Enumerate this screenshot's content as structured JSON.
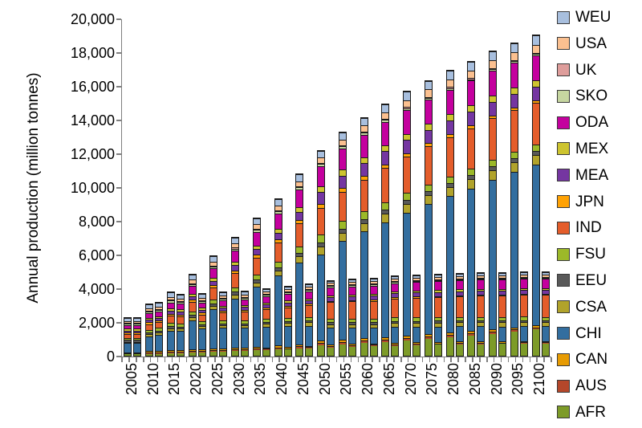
{
  "chart_data": {
    "type": "bar",
    "variant": "grouped-stacked-columns",
    "title": "",
    "xlabel": "",
    "ylabel": "Annual production (million tonnes)",
    "ylim": [
      0,
      20000
    ],
    "ytick_step": 2000,
    "ytick_labels": [
      "0",
      "2,000",
      "4,000",
      "6,000",
      "8,000",
      "10,000",
      "12,000",
      "14,000",
      "16,000",
      "18,000",
      "20,000"
    ],
    "grid": false,
    "legend_position": "right",
    "axis_color": "#7f7f7f",
    "bar_outline_color": "#1b1b1b",
    "years": [
      "2005",
      "2010",
      "2015",
      "2020",
      "2025",
      "2030",
      "2035",
      "2040",
      "2045",
      "2050",
      "2055",
      "2060",
      "2065",
      "2070",
      "2075",
      "2080",
      "2085",
      "2090",
      "2095",
      "2100"
    ],
    "bars_per_group": 2,
    "bar_keys": [
      "left_bar",
      "right_bar"
    ],
    "legend": [
      {
        "label": "WEU",
        "color": "#A8BFDE"
      },
      {
        "label": "USA",
        "color": "#FBC090"
      },
      {
        "label": "UK",
        "color": "#DE9D9B"
      },
      {
        "label": "SKO",
        "color": "#C6D6A0"
      },
      {
        "label": "ODA",
        "color": "#C4009E"
      },
      {
        "label": "MEX",
        "color": "#CDC42F"
      },
      {
        "label": "MEA",
        "color": "#7536A1"
      },
      {
        "label": "JPN",
        "color": "#FFA204"
      },
      {
        "label": "IND",
        "color": "#E45D2B"
      },
      {
        "label": "FSU",
        "color": "#9CB929"
      },
      {
        "label": "EEU",
        "color": "#595959"
      },
      {
        "label": "CSA",
        "color": "#B1A32B"
      },
      {
        "label": "CHI",
        "color": "#336E9F"
      },
      {
        "label": "CAN",
        "color": "#E79B02"
      },
      {
        "label": "AUS",
        "color": "#B5472A"
      },
      {
        "label": "AFR",
        "color": "#7D9B28"
      }
    ],
    "stack_order_bottom_to_top": [
      "AFR",
      "AUS",
      "CAN",
      "CHI",
      "CSA",
      "EEU",
      "FSU",
      "IND",
      "JPN",
      "MEA",
      "MEX",
      "ODA",
      "SKO",
      "UK",
      "USA",
      "WEU"
    ],
    "series": {
      "left_bar": {
        "AFR": [
          80,
          110,
          150,
          200,
          240,
          280,
          320,
          370,
          430,
          620,
          690,
          760,
          830,
          910,
          990,
          1080,
          1180,
          1290,
          1410,
          1550
        ],
        "AUS": [
          65,
          80,
          90,
          100,
          110,
          115,
          120,
          125,
          130,
          140,
          140,
          140,
          140,
          140,
          140,
          140,
          140,
          140,
          140,
          140
        ],
        "CAN": [
          65,
          75,
          85,
          90,
          95,
          100,
          105,
          110,
          120,
          140,
          140,
          140,
          140,
          140,
          140,
          140,
          140,
          140,
          140,
          140
        ],
        "CHI": [
          530,
          895,
          1160,
          1710,
          2315,
          2905,
          3535,
          4145,
          4860,
          5100,
          5820,
          6330,
          6805,
          7300,
          7710,
          8100,
          8450,
          8865,
          9205,
          9490
        ],
        "CSA": [
          95,
          120,
          150,
          180,
          210,
          240,
          270,
          310,
          350,
          480,
          490,
          500,
          510,
          520,
          530,
          540,
          550,
          560,
          565,
          570
        ],
        "EEU": [
          110,
          120,
          130,
          140,
          150,
          160,
          170,
          180,
          200,
          240,
          240,
          240,
          240,
          240,
          240,
          240,
          240,
          240,
          240,
          240
        ],
        "FSU": [
          125,
          150,
          180,
          210,
          240,
          270,
          300,
          340,
          400,
          480,
          460,
          440,
          430,
          420,
          410,
          400,
          395,
          390,
          385,
          380
        ],
        "IND": [
          225,
          330,
          430,
          560,
          700,
          850,
          1000,
          1150,
          1350,
          1570,
          1750,
          1900,
          2050,
          2150,
          2250,
          2330,
          2400,
          2450,
          2480,
          2500
        ],
        "JPN": [
          95,
          110,
          120,
          130,
          140,
          150,
          160,
          170,
          190,
          240,
          230,
          220,
          210,
          200,
          190,
          180,
          170,
          160,
          150,
          140
        ],
        "MEA": [
          110,
          140,
          170,
          210,
          250,
          300,
          350,
          400,
          500,
          710,
          730,
          750,
          770,
          780,
          790,
          795,
          800,
          800,
          800,
          800
        ],
        "MEX": [
          115,
          130,
          145,
          160,
          180,
          200,
          220,
          240,
          280,
          330,
          340,
          350,
          355,
          360,
          365,
          370,
          375,
          378,
          380,
          380
        ],
        "ODA": [
          205,
          280,
          360,
          450,
          550,
          660,
          780,
          900,
          1050,
          1190,
          1280,
          1350,
          1400,
          1430,
          1450,
          1470,
          1480,
          1490,
          1495,
          1500
        ],
        "SKO": [
          80,
          90,
          100,
          110,
          120,
          130,
          140,
          140,
          140,
          140,
          130,
          120,
          110,
          100,
          95,
          90,
          85,
          82,
          80,
          80
        ],
        "UK": [
          60,
          60,
          60,
          60,
          60,
          60,
          60,
          60,
          60,
          60,
          60,
          60,
          60,
          60,
          60,
          60,
          60,
          60,
          60,
          60
        ],
        "USA": [
          100,
          130,
          160,
          200,
          230,
          250,
          270,
          290,
          300,
          310,
          330,
          360,
          390,
          420,
          440,
          450,
          460,
          470,
          475,
          480
        ],
        "WEU": [
          190,
          230,
          260,
          290,
          310,
          330,
          350,
          370,
          390,
          400,
          420,
          440,
          460,
          480,
          500,
          515,
          525,
          535,
          545,
          550
        ]
      },
      "right_bar": {
        "AFR": [
          80,
          110,
          150,
          200,
          240,
          280,
          320,
          360,
          420,
          500,
          530,
          560,
          590,
          620,
          650,
          670,
          690,
          700,
          710,
          720
        ],
        "AUS": [
          65,
          80,
          90,
          90,
          90,
          90,
          90,
          90,
          90,
          90,
          90,
          90,
          90,
          85,
          85,
          85,
          80,
          80,
          80,
          80
        ],
        "CAN": [
          65,
          75,
          85,
          85,
          85,
          85,
          85,
          85,
          85,
          90,
          90,
          90,
          90,
          85,
          85,
          85,
          80,
          80,
          80,
          80
        ],
        "CHI": [
          530,
          995,
          1135,
          1230,
          1235,
          1190,
          1215,
          1215,
          1185,
          970,
          940,
          910,
          960,
          940,
          910,
          900,
          905,
          875,
          900,
          880
        ],
        "CSA": [
          95,
          120,
          150,
          150,
          160,
          170,
          180,
          190,
          200,
          220,
          225,
          230,
          235,
          240,
          245,
          250,
          250,
          250,
          250,
          250
        ],
        "EEU": [
          110,
          120,
          130,
          120,
          115,
          110,
          110,
          110,
          110,
          110,
          108,
          106,
          104,
          102,
          100,
          100,
          100,
          100,
          100,
          100
        ],
        "FSU": [
          125,
          150,
          180,
          180,
          185,
          190,
          195,
          200,
          210,
          220,
          218,
          215,
          212,
          210,
          208,
          205,
          202,
          200,
          200,
          200
        ],
        "IND": [
          225,
          330,
          420,
          400,
          450,
          500,
          560,
          630,
          700,
          980,
          1020,
          1060,
          1120,
          1160,
          1200,
          1230,
          1260,
          1280,
          1290,
          1300
        ],
        "JPN": [
          95,
          110,
          115,
          110,
          105,
          100,
          95,
          90,
          85,
          70,
          68,
          66,
          64,
          62,
          60,
          60,
          60,
          60,
          60,
          60
        ],
        "MEA": [
          110,
          140,
          165,
          170,
          180,
          185,
          190,
          200,
          210,
          220,
          225,
          230,
          235,
          240,
          245,
          248,
          250,
          250,
          250,
          250
        ],
        "MEX": [
          115,
          130,
          140,
          130,
          125,
          120,
          115,
          112,
          110,
          110,
          108,
          106,
          104,
          102,
          100,
          100,
          100,
          100,
          100,
          100
        ],
        "ODA": [
          205,
          280,
          340,
          300,
          320,
          340,
          370,
          400,
          430,
          480,
          490,
          500,
          510,
          520,
          530,
          535,
          540,
          545,
          548,
          550
        ],
        "SKO": [
          80,
          90,
          95,
          95,
          90,
          88,
          85,
          82,
          80,
          70,
          68,
          67,
          66,
          65,
          64,
          63,
          62,
          61,
          60,
          60
        ],
        "UK": [
          60,
          60,
          55,
          50,
          48,
          46,
          45,
          44,
          43,
          40,
          40,
          40,
          40,
          40,
          40,
          40,
          40,
          40,
          40,
          40
        ],
        "USA": [
          100,
          130,
          150,
          140,
          140,
          140,
          142,
          144,
          146,
          150,
          152,
          154,
          156,
          158,
          160,
          160,
          160,
          160,
          160,
          160
        ],
        "WEU": [
          190,
          230,
          250,
          200,
          180,
          165,
          155,
          150,
          145,
          130,
          128,
          126,
          124,
          122,
          120,
          120,
          120,
          120,
          120,
          120
        ]
      }
    }
  }
}
